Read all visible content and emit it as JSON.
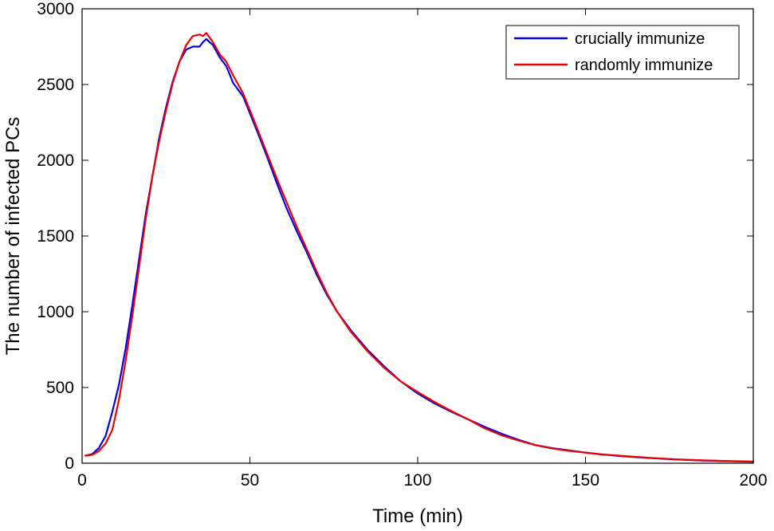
{
  "chart_data": {
    "type": "line",
    "title": "",
    "xlabel": "Time (min)",
    "ylabel": "The number of infected PCs",
    "xlim": [
      0,
      200
    ],
    "ylim": [
      0,
      3000
    ],
    "xticks": [
      0,
      50,
      100,
      150,
      200
    ],
    "yticks": [
      0,
      500,
      1000,
      1500,
      2000,
      2500,
      3000
    ],
    "grid": false,
    "legend_position": "top-right",
    "series": [
      {
        "name": "crucially immunize",
        "color": "#0000ee",
        "x": [
          1,
          3,
          5,
          7,
          9,
          11,
          13,
          15,
          17,
          19,
          21,
          23,
          25,
          27,
          29,
          31,
          33,
          35,
          36,
          37,
          39,
          41,
          43,
          45,
          48,
          50,
          52,
          55,
          58,
          61,
          64,
          67,
          70,
          73,
          76,
          80,
          85,
          90,
          95,
          100,
          105,
          110,
          115,
          120,
          125,
          130,
          135,
          140,
          145,
          150,
          155,
          160,
          165,
          170,
          175,
          180,
          185,
          190,
          195,
          200
        ],
        "y": [
          50,
          60,
          100,
          180,
          340,
          520,
          760,
          1050,
          1350,
          1650,
          1900,
          2150,
          2350,
          2520,
          2650,
          2730,
          2750,
          2750,
          2780,
          2800,
          2760,
          2680,
          2620,
          2510,
          2420,
          2310,
          2200,
          2030,
          1850,
          1680,
          1530,
          1390,
          1240,
          1110,
          1000,
          880,
          750,
          640,
          540,
          460,
          395,
          340,
          290,
          240,
          195,
          155,
          120,
          100,
          85,
          70,
          58,
          48,
          40,
          33,
          27,
          22,
          18,
          15,
          12,
          10
        ]
      },
      {
        "name": "randomly immunize",
        "color": "#ee0000",
        "x": [
          1,
          3,
          5,
          7,
          9,
          11,
          13,
          15,
          17,
          19,
          21,
          23,
          25,
          27,
          29,
          31,
          33,
          35,
          36,
          37,
          39,
          41,
          43,
          45,
          48,
          50,
          52,
          55,
          58,
          61,
          64,
          67,
          70,
          73,
          76,
          80,
          85,
          90,
          95,
          100,
          105,
          110,
          115,
          120,
          125,
          130,
          135,
          140,
          145,
          150,
          155,
          160,
          165,
          170,
          175,
          180,
          185,
          190,
          195,
          200
        ],
        "y": [
          50,
          55,
          80,
          130,
          220,
          420,
          680,
          980,
          1300,
          1620,
          1900,
          2130,
          2330,
          2510,
          2650,
          2760,
          2820,
          2830,
          2820,
          2840,
          2780,
          2700,
          2650,
          2560,
          2440,
          2330,
          2220,
          2050,
          1880,
          1720,
          1560,
          1410,
          1260,
          1120,
          1000,
          870,
          740,
          630,
          540,
          470,
          405,
          345,
          290,
          230,
          185,
          150,
          120,
          98,
          82,
          70,
          58,
          50,
          42,
          34,
          28,
          23,
          19,
          16,
          13,
          11
        ]
      }
    ]
  }
}
